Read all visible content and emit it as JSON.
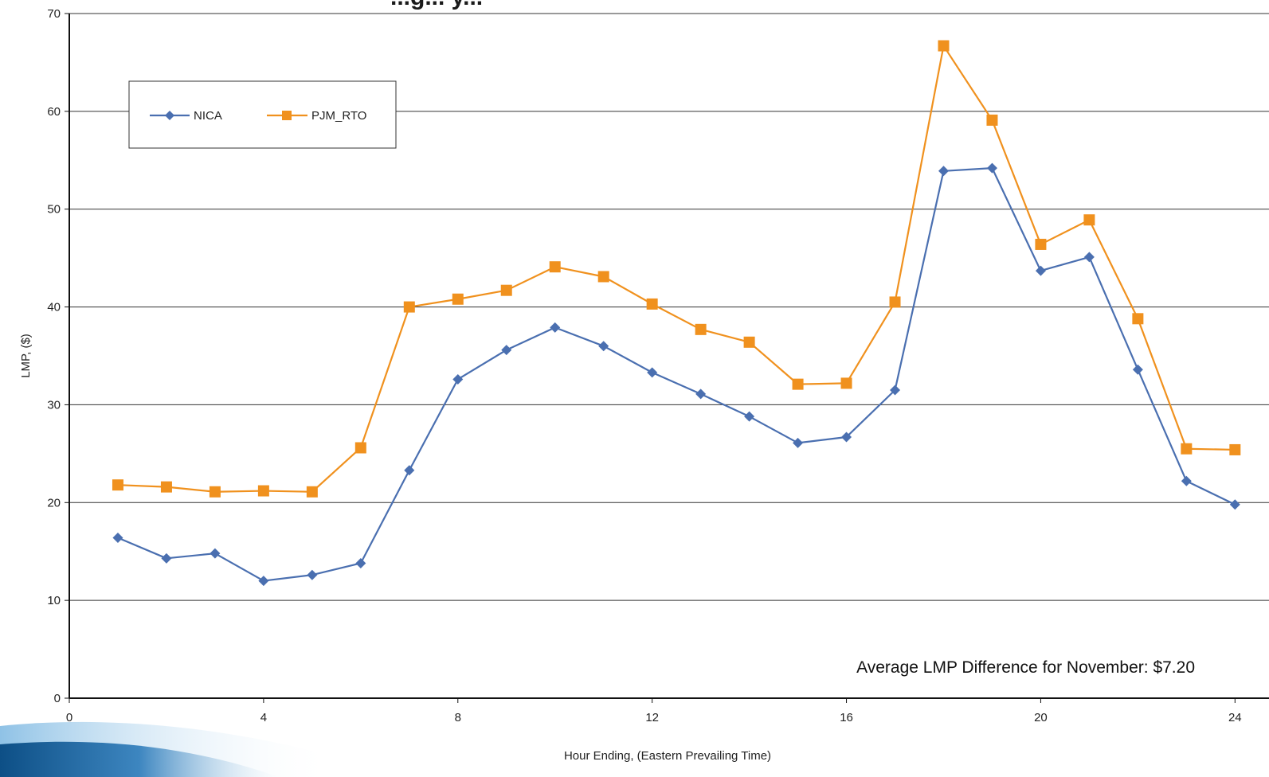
{
  "chart_data": {
    "type": "line",
    "title": "...g... y...",
    "xlabel": "Hour Ending, (Eastern Prevailing Time)",
    "ylabel": "LMP, ($)",
    "xlim": [
      0,
      24.7
    ],
    "ylim": [
      0,
      70
    ],
    "x_ticks": [
      0,
      4,
      8,
      12,
      16,
      20,
      24
    ],
    "y_ticks": [
      0,
      10,
      20,
      30,
      40,
      50,
      60,
      70
    ],
    "grid": "horizontal",
    "legend_position": "top-left",
    "annotation": "Average LMP Difference for November: $7.20",
    "x": [
      1,
      2,
      3,
      4,
      5,
      6,
      7,
      8,
      9,
      10,
      11,
      12,
      13,
      14,
      15,
      16,
      17,
      18,
      19,
      20,
      21,
      22,
      23,
      24
    ],
    "series": [
      {
        "name": "NICA",
        "color": "#4a6fb0",
        "marker": "diamond",
        "values": [
          16.4,
          14.3,
          14.8,
          12.0,
          12.6,
          13.8,
          23.3,
          32.6,
          35.6,
          37.9,
          36.0,
          33.3,
          31.1,
          28.8,
          26.1,
          26.7,
          31.5,
          53.9,
          54.2,
          43.7,
          45.1,
          33.6,
          22.2,
          19.8
        ]
      },
      {
        "name": "PJM_RTO",
        "color": "#f0911e",
        "marker": "square",
        "values": [
          21.8,
          21.6,
          21.1,
          21.2,
          21.1,
          25.6,
          40.0,
          40.8,
          41.7,
          44.1,
          43.1,
          40.3,
          37.7,
          36.4,
          32.1,
          32.2,
          40.5,
          66.7,
          59.1,
          46.4,
          48.9,
          38.8,
          25.5,
          25.4
        ]
      }
    ]
  }
}
